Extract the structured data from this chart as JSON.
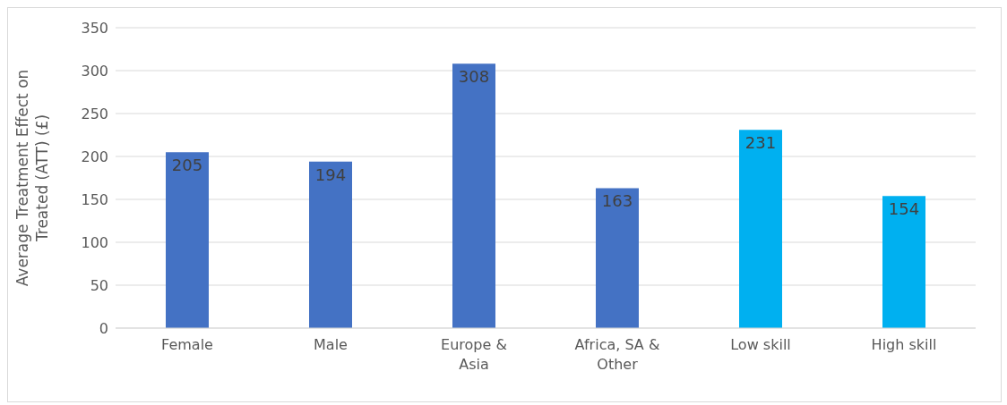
{
  "chart_data": {
    "type": "bar",
    "ylabel": "Average Treatment  Effect on Treated (ATT) (£)",
    "categories": [
      "Female",
      "Male",
      "Europe & Asia",
      "Africa, SA & Other",
      "Low skill",
      "High skill"
    ],
    "values": [
      205,
      194,
      308,
      163,
      231,
      154
    ],
    "colors": [
      "#4472c4",
      "#4472c4",
      "#4472c4",
      "#4472c4",
      "#00b0f0",
      "#00b0f0"
    ],
    "ylim": [
      0,
      350
    ],
    "yticks": [
      0,
      50,
      100,
      150,
      200,
      250,
      300,
      350
    ],
    "grid": "y",
    "data_labels": true
  }
}
